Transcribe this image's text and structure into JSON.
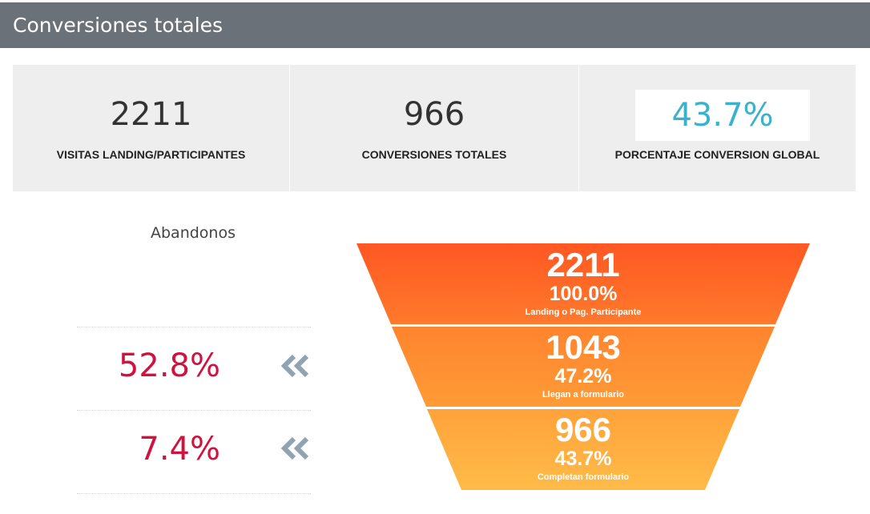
{
  "header": {
    "title": "Conversiones totales"
  },
  "kpis": [
    {
      "value": "2211",
      "label": "VISITAS LANDING/PARTICIPANTES"
    },
    {
      "value": "966",
      "label": "CONVERSIONES TOTALES"
    },
    {
      "value": "43.7%",
      "label": "PORCENTAJE CONVERSION GLOBAL",
      "color": "#3ab2cc"
    }
  ],
  "abandonos": {
    "title": "Abandonos",
    "rows": [
      {
        "value": "52.8%",
        "icon": "double-chevron-left-icon"
      },
      {
        "value": "7.4%",
        "icon": "double-chevron-left-icon"
      }
    ],
    "value_color": "#d0123f"
  },
  "funnel": {
    "stages": [
      {
        "count": "2211",
        "percent": "100.0%",
        "label": "Landing o Pag. Participante",
        "color": "#ff5a24"
      },
      {
        "count": "1043",
        "percent": "47.2%",
        "label": "Llegan a formulario",
        "color": "#ff8a2e"
      },
      {
        "count": "966",
        "percent": "43.7%",
        "label": "Completan formulario",
        "color": "#ffad3d"
      }
    ]
  }
}
